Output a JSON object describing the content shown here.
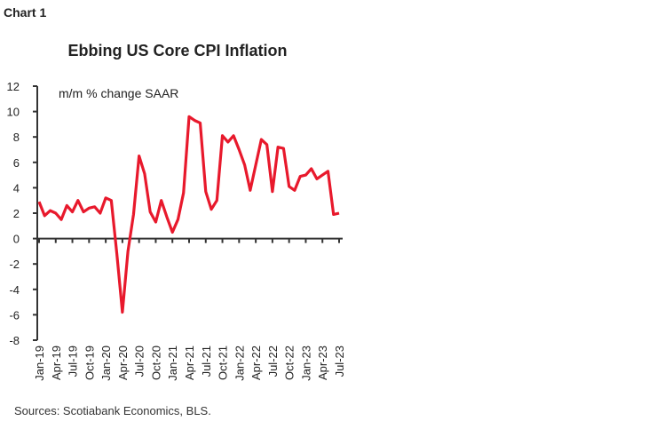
{
  "label": "Chart 1",
  "source": "Sources: Scotiabank Economics, BLS.",
  "chart_data": {
    "type": "line",
    "title": "Ebbing US Core CPI Inflation",
    "annotation": "m/m % change SAAR",
    "xlabel": "",
    "ylabel": "",
    "ylim": [
      -8,
      12
    ],
    "yticks": [
      12,
      10,
      8,
      6,
      4,
      2,
      0,
      -2,
      -4,
      -6,
      -8
    ],
    "x_tick_labels": [
      "Jan-19",
      "Apr-19",
      "Jul-19",
      "Oct-19",
      "Jan-20",
      "Apr-20",
      "Jul-20",
      "Oct-20",
      "Jan-21",
      "Apr-21",
      "Jul-21",
      "Oct-21",
      "Jan-22",
      "Apr-22",
      "Jul-22",
      "Oct-22",
      "Jan-23",
      "Apr-23",
      "Jul-23"
    ],
    "grid": false,
    "line_color": "#e8192c",
    "x": [
      "Jan-19",
      "Feb-19",
      "Mar-19",
      "Apr-19",
      "May-19",
      "Jun-19",
      "Jul-19",
      "Aug-19",
      "Sep-19",
      "Oct-19",
      "Nov-19",
      "Dec-19",
      "Jan-20",
      "Feb-20",
      "Mar-20",
      "Apr-20",
      "May-20",
      "Jun-20",
      "Jul-20",
      "Aug-20",
      "Sep-20",
      "Oct-20",
      "Nov-20",
      "Dec-20",
      "Jan-21",
      "Feb-21",
      "Mar-21",
      "Apr-21",
      "May-21",
      "Jun-21",
      "Jul-21",
      "Aug-21",
      "Sep-21",
      "Oct-21",
      "Nov-21",
      "Dec-21",
      "Jan-22",
      "Feb-22",
      "Mar-22",
      "Apr-22",
      "May-22",
      "Jun-22",
      "Jul-22",
      "Aug-22",
      "Sep-22",
      "Oct-22",
      "Nov-22",
      "Dec-22",
      "Jan-23",
      "Feb-23",
      "Mar-23",
      "Apr-23",
      "May-23",
      "Jun-23",
      "Jul-23"
    ],
    "values": [
      2.9,
      1.8,
      2.2,
      2.0,
      1.5,
      2.6,
      2.1,
      3.0,
      2.1,
      2.4,
      2.5,
      2.0,
      3.2,
      3.0,
      -1.2,
      -5.8,
      -1.0,
      1.9,
      6.5,
      5.1,
      2.1,
      1.3,
      3.0,
      1.7,
      0.5,
      1.5,
      3.6,
      9.6,
      9.3,
      9.1,
      3.7,
      2.3,
      3.0,
      8.1,
      7.6,
      8.1,
      7.0,
      5.8,
      3.8,
      5.8,
      7.8,
      7.4,
      3.7,
      7.2,
      7.1,
      4.1,
      3.8,
      4.9,
      5.0,
      5.5,
      4.7,
      5.0,
      5.3,
      1.9,
      2.0
    ]
  }
}
